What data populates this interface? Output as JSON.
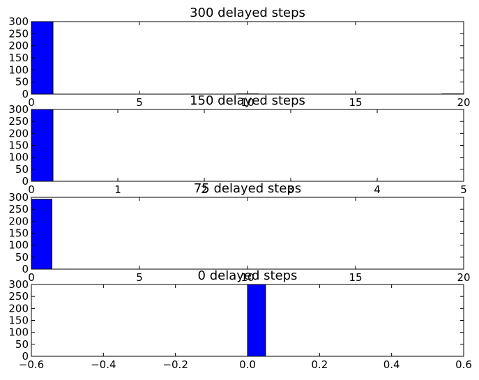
{
  "chart_data": [
    {
      "type": "bar",
      "title": "300 delayed steps",
      "xlim": [
        0,
        20
      ],
      "ylim": [
        0,
        300
      ],
      "xticks": [
        0,
        5,
        10,
        15,
        20
      ],
      "yticks": [
        0,
        50,
        100,
        150,
        200,
        250,
        300
      ],
      "xtick_labels": [
        "0",
        "5",
        "10",
        "15",
        "20"
      ],
      "ytick_labels": [
        "0",
        "50",
        "100",
        "150",
        "200",
        "250",
        "300"
      ],
      "bin_width": 1,
      "bins": [
        {
          "x": 0,
          "value": 300
        },
        {
          "x": 9.5,
          "value": 1
        },
        {
          "x": 19,
          "value": 1
        }
      ],
      "bar_color": "#0000ff",
      "grid": false
    },
    {
      "type": "bar",
      "title": "150 delayed steps",
      "xlim": [
        0,
        5
      ],
      "ylim": [
        0,
        300
      ],
      "xticks": [
        0,
        1,
        2,
        3,
        4,
        5
      ],
      "yticks": [
        0,
        50,
        100,
        150,
        200,
        250,
        300
      ],
      "xtick_labels": [
        "0",
        "1",
        "2",
        "3",
        "4",
        "5"
      ],
      "ytick_labels": [
        "0",
        "50",
        "100",
        "150",
        "200",
        "250",
        "300"
      ],
      "bin_width": 0.25,
      "bins": [
        {
          "x": 0,
          "value": 300
        }
      ],
      "bar_color": "#0000ff",
      "grid": false
    },
    {
      "type": "bar",
      "title": "75 delayed steps",
      "xlim": [
        0,
        20
      ],
      "ylim": [
        0,
        300
      ],
      "xticks": [
        0,
        5,
        10,
        15,
        20
      ],
      "yticks": [
        0,
        50,
        100,
        150,
        200,
        250,
        300
      ],
      "xtick_labels": [
        "0",
        "5",
        "10",
        "15",
        "20"
      ],
      "ytick_labels": [
        "0",
        "50",
        "100",
        "150",
        "200",
        "250",
        "300"
      ],
      "bin_width": 0.95,
      "bins": [
        {
          "x": 0,
          "value": 292
        }
      ],
      "bar_color": "#0000ff",
      "grid": false
    },
    {
      "type": "bar",
      "title": "0 delayed steps",
      "xlim": [
        -0.6,
        0.6
      ],
      "ylim": [
        0,
        300
      ],
      "xticks": [
        -0.6,
        -0.4,
        -0.2,
        0.0,
        0.2,
        0.4,
        0.6
      ],
      "yticks": [
        0,
        50,
        100,
        150,
        200,
        250,
        300
      ],
      "xtick_labels": [
        "−0.6",
        "−0.4",
        "−0.2",
        "0.0",
        "0.2",
        "0.4",
        "0.6"
      ],
      "ytick_labels": [
        "0",
        "50",
        "100",
        "150",
        "200",
        "250",
        "300"
      ],
      "bin_width": 0.05,
      "bins": [
        {
          "x": 0,
          "value": 300
        }
      ],
      "bar_color": "#0000ff",
      "grid": false
    }
  ]
}
